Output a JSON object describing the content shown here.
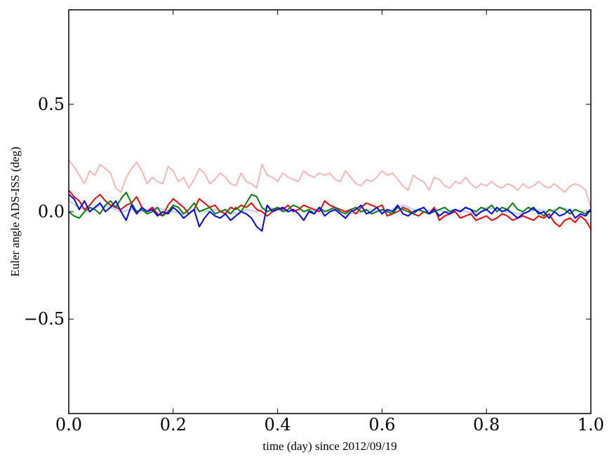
{
  "chart_data": {
    "type": "line",
    "title": "",
    "xlabel": "time (day) since 2012/09/19",
    "ylabel": "Euler angle ADS-ISS (deg)",
    "xlim": [
      0.0,
      1.0
    ],
    "ylim": [
      -0.94,
      0.94
    ],
    "xticks": [
      "0.0",
      "0.2",
      "0.4",
      "0.6",
      "0.8",
      "1.0"
    ],
    "yticks": [
      "0.5",
      "0.0",
      "−0.5"
    ],
    "ytick_values": [
      0.5,
      0.0,
      -0.5
    ],
    "grid": false,
    "legend": "none",
    "series": [
      {
        "color": "#f7b7b7",
        "width": 2,
        "x": [
          0.0,
          0.01,
          0.02,
          0.03,
          0.04,
          0.05,
          0.06,
          0.07,
          0.08,
          0.09,
          0.1,
          0.11,
          0.12,
          0.13,
          0.14,
          0.15,
          0.16,
          0.17,
          0.18,
          0.19,
          0.2,
          0.21,
          0.22,
          0.23,
          0.24,
          0.25,
          0.26,
          0.27,
          0.28,
          0.29,
          0.3,
          0.31,
          0.32,
          0.33,
          0.34,
          0.35,
          0.36,
          0.37,
          0.38,
          0.39,
          0.4,
          0.41,
          0.42,
          0.43,
          0.44,
          0.45,
          0.46,
          0.47,
          0.48,
          0.49,
          0.5,
          0.51,
          0.52,
          0.53,
          0.54,
          0.55,
          0.56,
          0.57,
          0.58,
          0.59,
          0.6,
          0.61,
          0.62,
          0.63,
          0.64,
          0.65,
          0.66,
          0.67,
          0.68,
          0.69,
          0.7,
          0.71,
          0.72,
          0.73,
          0.74,
          0.75,
          0.76,
          0.77,
          0.78,
          0.79,
          0.8,
          0.81,
          0.82,
          0.83,
          0.84,
          0.85,
          0.86,
          0.87,
          0.88,
          0.89,
          0.9,
          0.91,
          0.92,
          0.93,
          0.94,
          0.95,
          0.96,
          0.97,
          0.98,
          0.99,
          1.0
        ],
        "y": [
          0.24,
          0.21,
          0.17,
          0.13,
          0.19,
          0.17,
          0.22,
          0.2,
          0.18,
          0.11,
          0.09,
          0.16,
          0.2,
          0.23,
          0.19,
          0.13,
          0.16,
          0.14,
          0.13,
          0.21,
          0.19,
          0.14,
          0.16,
          0.11,
          0.15,
          0.2,
          0.18,
          0.13,
          0.15,
          0.18,
          0.16,
          0.13,
          0.12,
          0.18,
          0.14,
          0.13,
          0.11,
          0.22,
          0.17,
          0.16,
          0.14,
          0.18,
          0.16,
          0.15,
          0.14,
          0.19,
          0.17,
          0.16,
          0.18,
          0.17,
          0.18,
          0.15,
          0.14,
          0.19,
          0.16,
          0.13,
          0.12,
          0.15,
          0.14,
          0.16,
          0.19,
          0.17,
          0.18,
          0.15,
          0.12,
          0.1,
          0.17,
          0.15,
          0.14,
          0.1,
          0.16,
          0.15,
          0.12,
          0.11,
          0.14,
          0.13,
          0.16,
          0.13,
          0.11,
          0.13,
          0.12,
          0.14,
          0.12,
          0.11,
          0.13,
          0.12,
          0.1,
          0.13,
          0.11,
          0.12,
          0.14,
          0.12,
          0.11,
          0.13,
          0.11,
          0.09,
          0.12,
          0.13,
          0.12,
          0.1,
          0.02
        ]
      },
      {
        "color": "#c8d0f7",
        "width": 2.5,
        "x": [
          0.0,
          0.02,
          0.04,
          0.06,
          0.08,
          0.1,
          0.12,
          0.14,
          0.16,
          0.18,
          0.2,
          0.22,
          0.24,
          0.26,
          0.28,
          0.3,
          0.32,
          0.34,
          0.36,
          0.38,
          0.4,
          0.42,
          0.44,
          0.46,
          0.48,
          0.5,
          0.52,
          0.54,
          0.56,
          0.58,
          0.6,
          0.62,
          0.64,
          0.66,
          0.68,
          0.7,
          0.72,
          0.74,
          0.76,
          0.78,
          0.8,
          0.82,
          0.84,
          0.86,
          0.88,
          0.9,
          0.92,
          0.94,
          0.96,
          0.98,
          1.0
        ],
        "y": [
          0.05,
          0.02,
          0.0,
          0.03,
          0.02,
          0.0,
          0.01,
          0.0,
          0.02,
          0.01,
          0.0,
          -0.01,
          0.01,
          0.0,
          0.01,
          0.0,
          -0.01,
          0.01,
          0.0,
          0.02,
          0.01,
          0.0,
          0.01,
          0.0,
          0.01,
          0.0,
          0.01,
          -0.01,
          0.0,
          0.01,
          0.0,
          0.01,
          0.03,
          0.01,
          0.0,
          0.01,
          0.0,
          0.01,
          0.0,
          -0.01,
          0.02,
          0.01,
          0.0,
          -0.01,
          0.0,
          0.01,
          0.0,
          0.02,
          0.01,
          0.0,
          0.01
        ]
      },
      {
        "color": "#ff0000",
        "width": 2,
        "x": [
          0.0,
          0.01,
          0.02,
          0.03,
          0.04,
          0.05,
          0.06,
          0.07,
          0.08,
          0.09,
          0.1,
          0.11,
          0.12,
          0.13,
          0.14,
          0.15,
          0.16,
          0.17,
          0.18,
          0.19,
          0.2,
          0.21,
          0.22,
          0.23,
          0.24,
          0.25,
          0.26,
          0.27,
          0.28,
          0.29,
          0.3,
          0.31,
          0.32,
          0.33,
          0.34,
          0.35,
          0.36,
          0.37,
          0.38,
          0.39,
          0.4,
          0.41,
          0.42,
          0.43,
          0.44,
          0.45,
          0.46,
          0.47,
          0.48,
          0.49,
          0.5,
          0.51,
          0.52,
          0.53,
          0.54,
          0.55,
          0.56,
          0.57,
          0.58,
          0.59,
          0.6,
          0.61,
          0.62,
          0.63,
          0.64,
          0.65,
          0.66,
          0.67,
          0.68,
          0.69,
          0.7,
          0.71,
          0.72,
          0.73,
          0.74,
          0.75,
          0.76,
          0.77,
          0.78,
          0.79,
          0.8,
          0.81,
          0.82,
          0.83,
          0.84,
          0.85,
          0.86,
          0.87,
          0.88,
          0.89,
          0.9,
          0.91,
          0.92,
          0.93,
          0.94,
          0.95,
          0.96,
          0.97,
          0.98,
          0.99,
          1.0
        ],
        "y": [
          0.1,
          0.07,
          0.05,
          0.01,
          0.03,
          0.06,
          0.08,
          0.05,
          0.03,
          0.02,
          0.01,
          0.03,
          0.04,
          0.07,
          0.02,
          0.0,
          0.02,
          -0.01,
          -0.02,
          0.03,
          0.06,
          0.04,
          0.02,
          -0.01,
          0.01,
          0.06,
          0.04,
          0.02,
          0.03,
          0.0,
          -0.01,
          0.02,
          0.01,
          0.03,
          0.02,
          0.04,
          0.01,
          0.0,
          -0.02,
          0.0,
          0.02,
          0.01,
          0.03,
          0.0,
          0.01,
          0.03,
          0.02,
          0.01,
          0.0,
          0.05,
          0.03,
          0.02,
          0.01,
          0.0,
          0.01,
          -0.01,
          0.02,
          0.04,
          0.03,
          0.02,
          0.03,
          -0.02,
          -0.01,
          0.0,
          0.02,
          0.01,
          -0.01,
          -0.02,
          0.0,
          -0.01,
          0.02,
          -0.04,
          -0.02,
          -0.01,
          0.0,
          -0.03,
          -0.02,
          -0.01,
          -0.04,
          -0.03,
          -0.02,
          -0.04,
          -0.03,
          -0.01,
          -0.02,
          -0.04,
          -0.03,
          -0.02,
          -0.03,
          -0.04,
          -0.02,
          -0.03,
          -0.01,
          -0.05,
          -0.07,
          -0.04,
          -0.03,
          -0.05,
          -0.02,
          -0.04,
          -0.08
        ]
      },
      {
        "color": "#008000",
        "width": 2,
        "x": [
          0.0,
          0.01,
          0.02,
          0.03,
          0.04,
          0.05,
          0.06,
          0.07,
          0.08,
          0.09,
          0.1,
          0.11,
          0.12,
          0.13,
          0.14,
          0.15,
          0.16,
          0.17,
          0.18,
          0.19,
          0.2,
          0.21,
          0.22,
          0.23,
          0.24,
          0.25,
          0.26,
          0.27,
          0.28,
          0.29,
          0.3,
          0.31,
          0.32,
          0.33,
          0.34,
          0.35,
          0.36,
          0.37,
          0.38,
          0.39,
          0.4,
          0.41,
          0.42,
          0.43,
          0.44,
          0.45,
          0.46,
          0.47,
          0.48,
          0.49,
          0.5,
          0.51,
          0.52,
          0.53,
          0.54,
          0.55,
          0.56,
          0.57,
          0.58,
          0.59,
          0.6,
          0.61,
          0.62,
          0.63,
          0.64,
          0.65,
          0.66,
          0.67,
          0.68,
          0.69,
          0.7,
          0.71,
          0.72,
          0.73,
          0.74,
          0.75,
          0.76,
          0.77,
          0.78,
          0.79,
          0.8,
          0.81,
          0.82,
          0.83,
          0.84,
          0.85,
          0.86,
          0.87,
          0.88,
          0.89,
          0.9,
          0.91,
          0.92,
          0.93,
          0.94,
          0.95,
          0.96,
          0.97,
          0.98,
          0.99,
          1.0
        ],
        "y": [
          0.0,
          -0.02,
          -0.03,
          0.0,
          0.02,
          0.01,
          -0.01,
          0.03,
          0.05,
          0.02,
          0.06,
          0.09,
          0.04,
          0.0,
          0.01,
          -0.01,
          0.0,
          0.02,
          -0.02,
          0.0,
          0.03,
          0.02,
          -0.01,
          0.01,
          0.04,
          0.0,
          0.01,
          0.02,
          -0.01,
          0.0,
          0.01,
          -0.01,
          0.02,
          0.0,
          0.04,
          0.08,
          0.07,
          0.02,
          0.0,
          0.01,
          0.02,
          0.0,
          0.01,
          0.03,
          0.02,
          0.0,
          0.01,
          -0.01,
          0.02,
          0.0,
          0.01,
          0.02,
          0.0,
          -0.01,
          0.01,
          0.02,
          0.0,
          0.01,
          -0.01,
          0.0,
          0.01,
          0.0,
          -0.01,
          0.02,
          0.01,
          0.0,
          -0.01,
          0.01,
          0.0,
          -0.01,
          0.0,
          0.01,
          0.02,
          0.0,
          0.01,
          0.0,
          0.02,
          0.01,
          0.0,
          0.02,
          0.01,
          0.03,
          0.0,
          0.02,
          0.01,
          0.04,
          0.01,
          0.0,
          0.02,
          0.01,
          0.0,
          -0.02,
          0.01,
          0.0,
          0.02,
          0.01,
          -0.01,
          0.01,
          0.0,
          -0.01,
          0.01
        ]
      },
      {
        "color": "#0000ff",
        "width": 2,
        "x": [
          0.0,
          0.01,
          0.02,
          0.03,
          0.04,
          0.05,
          0.06,
          0.07,
          0.08,
          0.09,
          0.1,
          0.11,
          0.12,
          0.13,
          0.14,
          0.15,
          0.16,
          0.17,
          0.18,
          0.19,
          0.2,
          0.21,
          0.22,
          0.23,
          0.24,
          0.25,
          0.26,
          0.27,
          0.28,
          0.29,
          0.3,
          0.31,
          0.32,
          0.33,
          0.34,
          0.35,
          0.36,
          0.37,
          0.38,
          0.39,
          0.4,
          0.41,
          0.42,
          0.43,
          0.44,
          0.45,
          0.46,
          0.47,
          0.48,
          0.49,
          0.5,
          0.51,
          0.52,
          0.53,
          0.54,
          0.55,
          0.56,
          0.57,
          0.58,
          0.59,
          0.6,
          0.61,
          0.62,
          0.63,
          0.64,
          0.65,
          0.66,
          0.67,
          0.68,
          0.69,
          0.7,
          0.71,
          0.72,
          0.73,
          0.74,
          0.75,
          0.76,
          0.77,
          0.78,
          0.79,
          0.8,
          0.81,
          0.82,
          0.83,
          0.84,
          0.85,
          0.86,
          0.87,
          0.88,
          0.89,
          0.9,
          0.91,
          0.92,
          0.93,
          0.94,
          0.95,
          0.96,
          0.97,
          0.98,
          0.99,
          1.0
        ],
        "y": [
          0.08,
          0.06,
          0.01,
          0.05,
          0.0,
          0.02,
          0.04,
          0.0,
          0.02,
          0.05,
          0.0,
          -0.04,
          0.03,
          -0.01,
          0.02,
          0.0,
          0.01,
          -0.02,
          0.0,
          -0.01,
          0.02,
          0.0,
          -0.03,
          -0.01,
          0.01,
          -0.07,
          -0.03,
          0.0,
          -0.02,
          -0.03,
          -0.01,
          -0.04,
          -0.02,
          0.0,
          -0.01,
          -0.03,
          -0.07,
          -0.09,
          0.03,
          0.0,
          0.01,
          0.02,
          0.0,
          0.01,
          -0.01,
          -0.04,
          0.0,
          -0.01,
          0.02,
          -0.02,
          0.0,
          0.01,
          -0.01,
          -0.03,
          0.0,
          0.01,
          0.03,
          -0.01,
          0.0,
          0.02,
          -0.01,
          0.01,
          0.0,
          0.03,
          -0.01,
          -0.02,
          0.0,
          0.01,
          0.02,
          -0.01,
          0.01,
          -0.02,
          0.0,
          -0.01,
          0.01,
          0.0,
          0.02,
          0.01,
          -0.02,
          0.0,
          0.01,
          -0.01,
          0.02,
          0.0,
          0.01,
          -0.01,
          -0.03,
          -0.01,
          0.0,
          0.02,
          -0.01,
          0.0,
          -0.03,
          0.0,
          -0.02,
          -0.01,
          0.01,
          -0.03,
          -0.01,
          -0.02,
          0.01
        ]
      }
    ]
  }
}
